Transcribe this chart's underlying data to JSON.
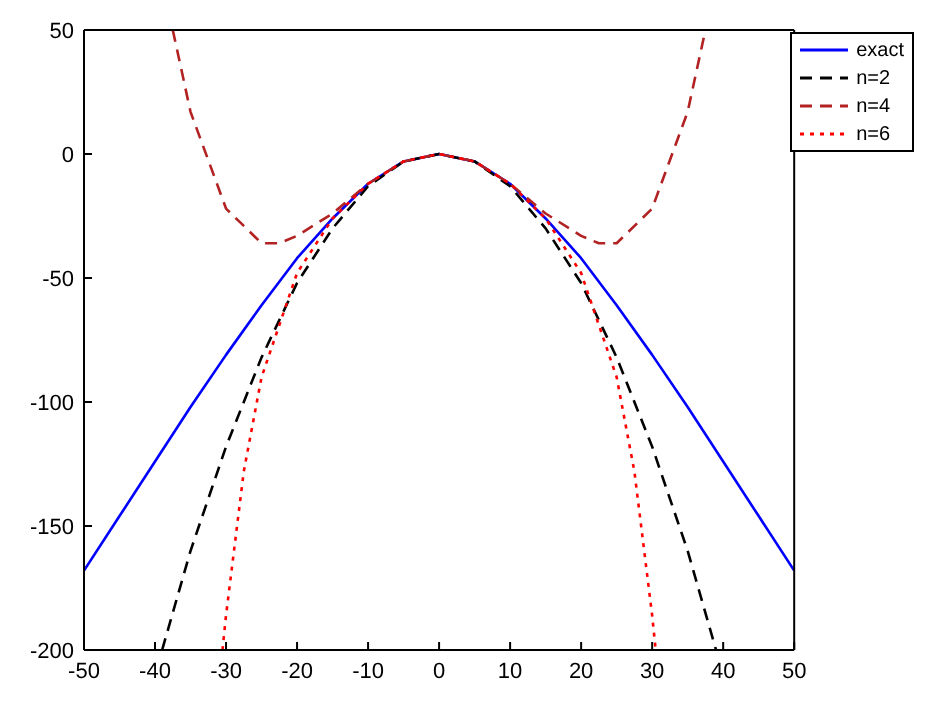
{
  "chart_data": {
    "type": "line",
    "xlim": [
      -50,
      50
    ],
    "ylim": [
      -200,
      50
    ],
    "xticks": [
      -50,
      -40,
      -30,
      -20,
      -10,
      0,
      10,
      20,
      30,
      40,
      50
    ],
    "yticks": [
      -200,
      -150,
      -100,
      -50,
      0,
      50
    ],
    "grid": false,
    "legend": "top right",
    "marker": "none",
    "series": [
      {
        "name": "exact",
        "color": "#0000ff",
        "line_style": "solid",
        "x": [
          -50,
          -45,
          -40,
          -35,
          -30,
          -25,
          -20,
          -15,
          -10,
          -5,
          0,
          5,
          10,
          15,
          20,
          25,
          30,
          35,
          40,
          45,
          50
        ],
        "values": [
          -168,
          -146,
          -124,
          -102,
          -81,
          -61,
          -42,
          -26,
          -12,
          -3,
          0,
          -3,
          -12,
          -26,
          -42,
          -61,
          -81,
          -102,
          -124,
          -146,
          -168
        ]
      },
      {
        "name": "n=2",
        "color": "#000000",
        "line_style": "dashed",
        "x": [
          -39,
          -35,
          -30,
          -25,
          -20,
          -15,
          -10,
          -5,
          0,
          5,
          10,
          15,
          20,
          25,
          30,
          35,
          39
        ],
        "values": [
          -200,
          -160,
          -118,
          -82,
          -52,
          -30,
          -13,
          -3,
          0,
          -3,
          -13,
          -30,
          -52,
          -82,
          -118,
          -160,
          -200
        ]
      },
      {
        "name": "n=4",
        "color": "#b22222",
        "line_style": "dashed",
        "x": [
          -37.5,
          -35,
          -30,
          -25,
          -22.5,
          -20,
          -15,
          -10,
          -5,
          0,
          5,
          10,
          15,
          20,
          22.5,
          25,
          30,
          35,
          37.5
        ],
        "values": [
          50,
          17,
          -22,
          -36,
          -36,
          -33,
          -24,
          -12,
          -3,
          0,
          -3,
          -12,
          -24,
          -33,
          -36,
          -36,
          -22,
          17,
          50
        ]
      },
      {
        "name": "n=6",
        "color": "#ff0000",
        "line_style": "dotted",
        "x": [
          -30.5,
          -30,
          -27.5,
          -25,
          -20,
          -15,
          -10,
          -5,
          0,
          5,
          10,
          15,
          20,
          25,
          27.5,
          30,
          30.5
        ],
        "values": [
          -200,
          -186,
          -128,
          -90,
          -48,
          -26,
          -12,
          -3,
          0,
          -3,
          -12,
          -26,
          -48,
          -90,
          -128,
          -186,
          -200
        ]
      }
    ]
  }
}
